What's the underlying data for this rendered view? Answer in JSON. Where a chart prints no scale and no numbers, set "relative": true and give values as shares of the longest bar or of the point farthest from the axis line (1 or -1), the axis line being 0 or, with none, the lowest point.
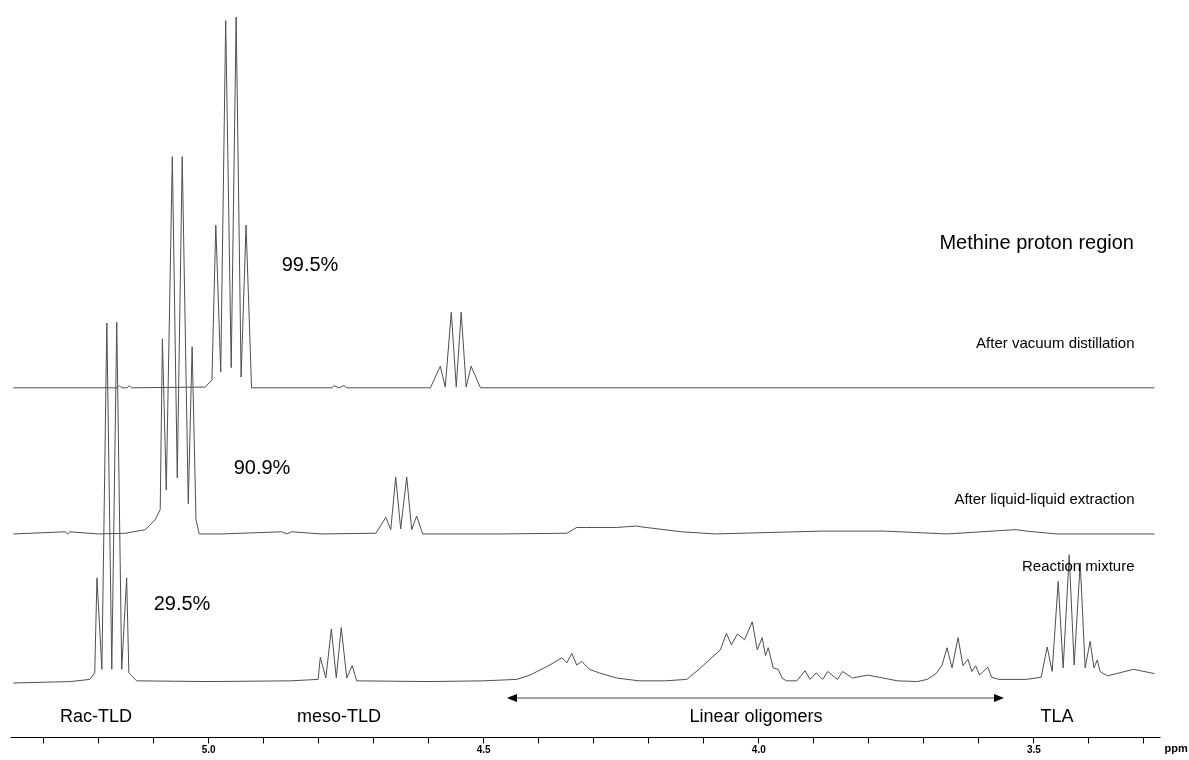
{
  "chart_data": {
    "type": "line",
    "relative": true,
    "title": "Methine proton region",
    "xlabel": "ppm",
    "xlim": [
      5.36,
      3.27
    ],
    "xticks": [
      {
        "value": 5.3,
        "label": null
      },
      {
        "value": 5.2,
        "label": null
      },
      {
        "value": 5.1,
        "label": null
      },
      {
        "value": 5.0,
        "label": "5.0"
      },
      {
        "value": 4.9,
        "label": null
      },
      {
        "value": 4.8,
        "label": null
      },
      {
        "value": 4.7,
        "label": null
      },
      {
        "value": 4.6,
        "label": null
      },
      {
        "value": 4.5,
        "label": "4.5"
      },
      {
        "value": 4.4,
        "label": null
      },
      {
        "value": 4.3,
        "label": null
      },
      {
        "value": 4.2,
        "label": null
      },
      {
        "value": 4.1,
        "label": null
      },
      {
        "value": 4.0,
        "label": "4.0"
      },
      {
        "value": 3.9,
        "label": null
      },
      {
        "value": 3.8,
        "label": null
      },
      {
        "value": 3.7,
        "label": null
      },
      {
        "value": 3.6,
        "label": null
      },
      {
        "value": 3.5,
        "label": "3.5"
      },
      {
        "value": 3.4,
        "label": null
      },
      {
        "value": 3.3,
        "label": null
      }
    ],
    "series": [
      {
        "name": "After vacuum distillation",
        "color": "#505050",
        "x": [
          5.354,
          5.165,
          5.161,
          5.157,
          5.147,
          5.143,
          5.139,
          5.005,
          4.993,
          4.986,
          4.977,
          4.968,
          4.958,
          4.949,
          4.94,
          4.931,
          4.921,
          4.884,
          4.775,
          4.771,
          4.762,
          4.753,
          4.748,
          4.596,
          4.578,
          4.569,
          4.558,
          4.549,
          4.54,
          4.531,
          4.522,
          4.505,
          3.28
        ],
        "values": [
          0.485,
          0.485,
          0.488,
          0.485,
          0.485,
          0.488,
          0.485,
          0.486,
          0.496,
          0.711,
          0.507,
          0.995,
          0.513,
          1.0,
          0.5,
          0.711,
          0.485,
          0.485,
          0.485,
          0.488,
          0.485,
          0.488,
          0.485,
          0.485,
          0.515,
          0.486,
          0.59,
          0.486,
          0.59,
          0.486,
          0.515,
          0.485,
          0.485
        ]
      },
      {
        "name": "After liquid-liquid extraction",
        "color": "#505050",
        "x": [
          5.354,
          5.26,
          5.255,
          5.251,
          5.2,
          5.15,
          5.114,
          5.096,
          5.087,
          5.083,
          5.076,
          5.065,
          5.056,
          5.047,
          5.036,
          5.029,
          5.022,
          5.016,
          4.975,
          4.866,
          4.857,
          4.848,
          4.794,
          4.695,
          4.677,
          4.668,
          4.659,
          4.65,
          4.639,
          4.63,
          4.621,
          4.61,
          4.469,
          4.348,
          4.33,
          4.312,
          4.258,
          4.222,
          4.204,
          4.139,
          4.078,
          3.884,
          3.771,
          3.657,
          3.532,
          3.513,
          3.458,
          3.28
        ],
        "values": [
          0.282,
          0.285,
          0.282,
          0.285,
          0.282,
          0.283,
          0.288,
          0.302,
          0.316,
          0.553,
          0.343,
          0.806,
          0.36,
          0.806,
          0.324,
          0.542,
          0.302,
          0.282,
          0.282,
          0.285,
          0.282,
          0.285,
          0.282,
          0.283,
          0.305,
          0.288,
          0.361,
          0.289,
          0.361,
          0.288,
          0.307,
          0.282,
          0.282,
          0.283,
          0.291,
          0.291,
          0.291,
          0.293,
          0.291,
          0.285,
          0.282,
          0.286,
          0.286,
          0.282,
          0.288,
          0.286,
          0.282,
          0.282
        ]
      },
      {
        "name": "Reaction mixture",
        "color": "#505050",
        "x": [
          5.354,
          5.25,
          5.215,
          5.206,
          5.202,
          5.193,
          5.184,
          5.175,
          5.166,
          5.157,
          5.148,
          5.144,
          5.13,
          5.0,
          4.85,
          4.8,
          4.796,
          4.786,
          4.776,
          4.767,
          4.758,
          4.748,
          4.738,
          4.73,
          4.6,
          4.5,
          4.439,
          4.415,
          4.379,
          4.357,
          4.348,
          4.339,
          4.33,
          4.321,
          4.307,
          4.289,
          4.258,
          4.217,
          4.17,
          4.13,
          4.108,
          4.079,
          4.069,
          4.058,
          4.049,
          4.038,
          4.025,
          4.011,
          4.002,
          3.993,
          3.987,
          3.982,
          3.973,
          3.964,
          3.957,
          3.949,
          3.93,
          3.915,
          3.906,
          3.895,
          3.883,
          3.874,
          3.856,
          3.847,
          3.829,
          3.801,
          3.774,
          3.747,
          3.711,
          3.693,
          3.677,
          3.666,
          3.657,
          3.648,
          3.637,
          3.628,
          3.619,
          3.612,
          3.605,
          3.598,
          3.583,
          3.576,
          3.563,
          3.513,
          3.486,
          3.475,
          3.466,
          3.455,
          3.446,
          3.435,
          3.426,
          3.415,
          3.406,
          3.397,
          3.39,
          3.384,
          3.379,
          3.375,
          3.365,
          3.318,
          3.28
        ],
        "values": [
          0.075,
          0.077,
          0.08,
          0.089,
          0.221,
          0.094,
          0.575,
          0.094,
          0.576,
          0.094,
          0.221,
          0.089,
          0.078,
          0.077,
          0.078,
          0.08,
          0.111,
          0.082,
          0.15,
          0.082,
          0.152,
          0.082,
          0.099,
          0.078,
          0.077,
          0.078,
          0.08,
          0.086,
          0.1,
          0.11,
          0.103,
          0.116,
          0.1,
          0.105,
          0.094,
          0.089,
          0.082,
          0.078,
          0.078,
          0.08,
          0.094,
          0.114,
          0.121,
          0.144,
          0.128,
          0.143,
          0.135,
          0.16,
          0.121,
          0.138,
          0.113,
          0.124,
          0.096,
          0.094,
          0.082,
          0.078,
          0.078,
          0.092,
          0.08,
          0.089,
          0.08,
          0.091,
          0.08,
          0.091,
          0.082,
          0.086,
          0.082,
          0.078,
          0.077,
          0.08,
          0.088,
          0.1,
          0.124,
          0.096,
          0.138,
          0.099,
          0.108,
          0.091,
          0.099,
          0.086,
          0.097,
          0.083,
          0.08,
          0.08,
          0.083,
          0.125,
          0.091,
          0.216,
          0.096,
          0.253,
          0.1,
          0.242,
          0.096,
          0.133,
          0.096,
          0.107,
          0.091,
          0.089,
          0.085,
          0.094,
          0.088
        ]
      }
    ],
    "annotations": [
      "99.5%",
      "90.9%",
      "29.5%",
      "Rac-TLD",
      "meso-TLD",
      "Linear oligomers",
      "TLA"
    ],
    "grid": false
  }
}
